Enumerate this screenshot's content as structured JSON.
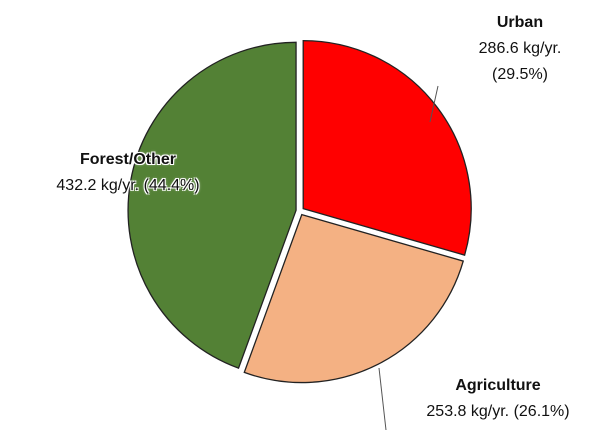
{
  "chart_data": {
    "type": "pie",
    "categories": [
      "Urban",
      "Agriculture",
      "Forest/Other"
    ],
    "values": [
      286.6,
      253.8,
      432.2
    ],
    "value_labels": [
      "286.6 kg/yr.(29.5%)",
      "253.8 kg/yr. (26.1%)",
      "432.2 kg/yr. (44.4%)"
    ],
    "colors": [
      "#ff0000",
      "#f4b183",
      "#538135"
    ]
  }
}
